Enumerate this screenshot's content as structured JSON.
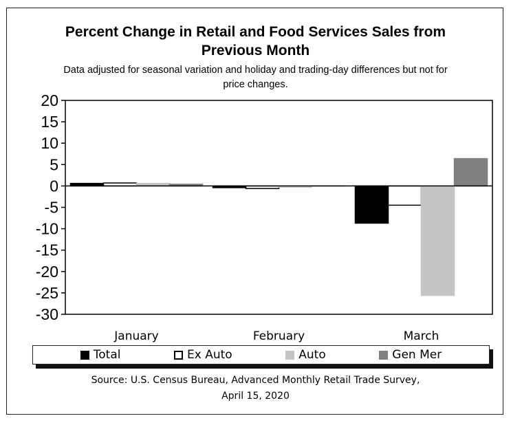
{
  "chart_data": {
    "type": "bar",
    "title": "Percent Change in Retail and Food Services Sales from Previous Month",
    "title_lines": [
      "Percent Change in Retail and Food Services Sales from",
      "Previous Month"
    ],
    "subtitle_lines": [
      "Data adjusted for seasonal variation and holiday and trading-day differences but not for",
      "price changes."
    ],
    "categories": [
      "January",
      "February",
      "March"
    ],
    "series": [
      {
        "name": "Total",
        "values": [
          0.6,
          -0.4,
          -8.7
        ],
        "color": "#000000",
        "outline": "#000000"
      },
      {
        "name": "Ex Auto",
        "values": [
          0.7,
          -0.6,
          -4.5
        ],
        "color": "#ffffff",
        "outline": "#000000"
      },
      {
        "name": "Auto",
        "values": [
          0.6,
          -0.3,
          -25.6
        ],
        "color": "#c4c4c4",
        "outline": "#c4c4c4"
      },
      {
        "name": "Gen Mer",
        "values": [
          0.4,
          0.0,
          6.4
        ],
        "color": "#808080",
        "outline": "#808080"
      }
    ],
    "ylim": [
      -30,
      20
    ],
    "yticks": [
      "20",
      "15",
      "10",
      "5",
      "0",
      "-5",
      "-10",
      "-15",
      "-20",
      "-25",
      "-30"
    ],
    "xlabel": "",
    "ylabel": "",
    "grid": false,
    "legend_position": "bottom",
    "source_lines": [
      "Source: U.S. Census Bureau, Advanced Monthly Retail Trade Survey,",
      "April 15, 2020"
    ]
  }
}
